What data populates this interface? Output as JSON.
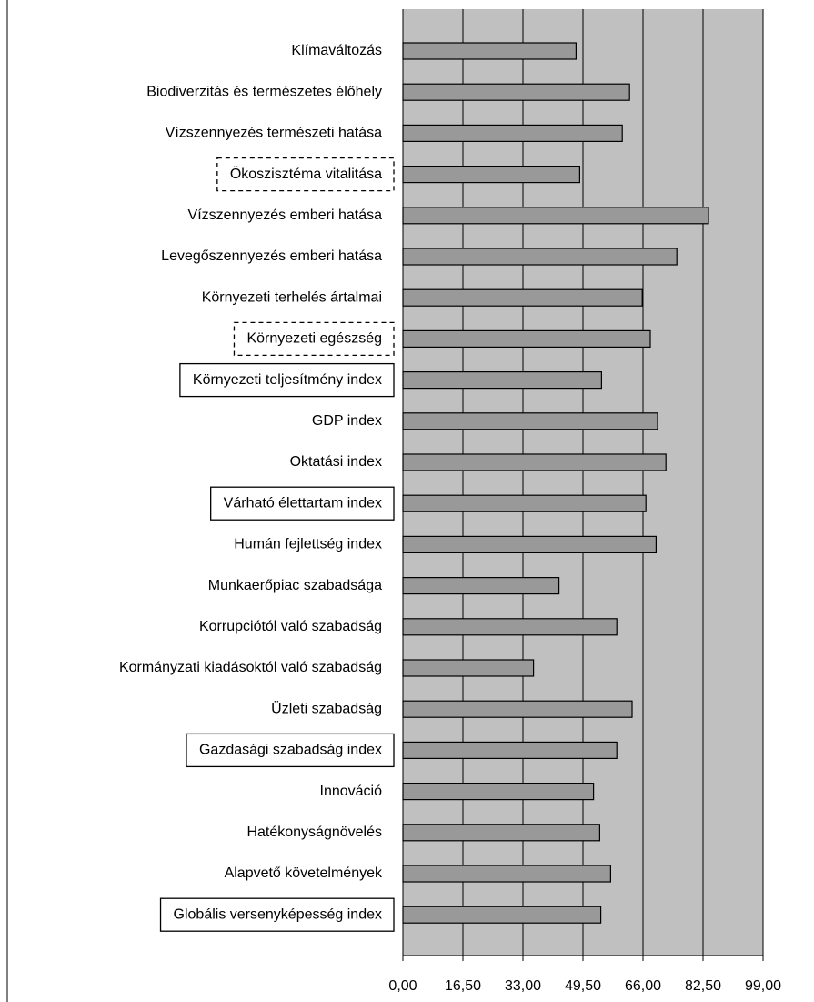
{
  "chart_data": {
    "type": "barh",
    "categories": [
      "Klímaváltozás",
      "Biodiverzitás és természetes élőhely",
      "Vízszennyezés természeti hatása",
      "Ökoszisztéma vitalitása",
      "Vízszennyezés emberi hatása",
      "Levegőszennyezés emberi hatása",
      "Környezeti terhelés ártalmai",
      "Környezeti egészség",
      "Környezeti teljesítmény index",
      "GDP index",
      "Oktatási index",
      "Várható élettartam index",
      "Humán fejlettség index",
      "Munkaerőpiac szabadsága",
      "Korrupciótól való szabadság",
      "Kormányzati kiadásoktól való szabadság",
      "Üzleti szabadság",
      "Gazdasági szabadság index",
      "Innováció",
      "Hatékonyságnövelés",
      "Alapvető követelmények",
      "Globális versenyképesség index"
    ],
    "values": [
      47.6,
      62.3,
      60.3,
      48.6,
      84.0,
      75.3,
      65.8,
      68.0,
      54.6,
      70.0,
      72.3,
      66.8,
      69.6,
      42.9,
      58.8,
      35.9,
      63.0,
      58.8,
      52.4,
      54.1,
      57.1,
      54.4
    ],
    "label_boxes": [
      null,
      null,
      null,
      "dashed",
      null,
      null,
      null,
      "dashed",
      "solid",
      null,
      null,
      "solid",
      null,
      null,
      null,
      null,
      null,
      "solid",
      null,
      null,
      null,
      "solid"
    ],
    "color": "#999999",
    "background": "#c0c0c0",
    "grid": true,
    "xlim": [
      0,
      99
    ],
    "xticks": [
      {
        "value": 0,
        "label": "0,00"
      },
      {
        "value": 16.5,
        "label": "16,50"
      },
      {
        "value": 33,
        "label": "33,00"
      },
      {
        "value": 49.5,
        "label": "49,50"
      },
      {
        "value": 66,
        "label": "66,00"
      },
      {
        "value": 82.5,
        "label": "82,50"
      },
      {
        "value": 99,
        "label": "99,00"
      }
    ]
  }
}
